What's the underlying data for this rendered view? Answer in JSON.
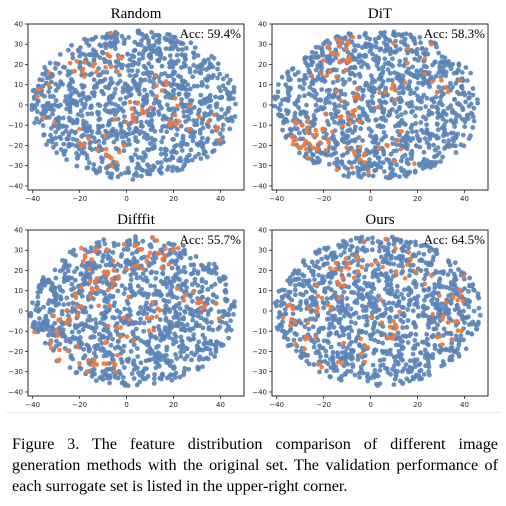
{
  "figure": {
    "caption": "Figure 3. The feature distribution comparison of different image generation methods with the original set. The validation performance of each surrogate set is listed in the upper-right corner."
  },
  "colors": {
    "original": "#5b84b8",
    "generated": "#f0783c"
  },
  "chart_data": [
    {
      "type": "scatter",
      "title": "Random",
      "annotation": "Acc: 59.4%",
      "xlim": [
        -42,
        50
      ],
      "ylim": [
        -42,
        40
      ],
      "xticks": [
        -40,
        -20,
        0,
        20,
        40
      ],
      "yticks": [
        -40,
        -30,
        -20,
        -10,
        0,
        10,
        20,
        30,
        40
      ],
      "series": [
        {
          "color": "#5b84b8",
          "count": 1100,
          "seed": 11
        },
        {
          "color": "#f0783c",
          "count": 75,
          "seed": 101,
          "clusters": [
            [
              -30,
              -5
            ],
            [
              -20,
              18
            ],
            [
              -8,
              25
            ],
            [
              5,
              -5
            ],
            [
              15,
              8
            ],
            [
              -25,
              -20
            ],
            [
              22,
              -12
            ],
            [
              -5,
              -25
            ],
            [
              35,
              -10
            ],
            [
              -35,
              10
            ]
          ]
        }
      ]
    },
    {
      "type": "scatter",
      "title": "DiT",
      "annotation": "Acc: 58.3%",
      "xlim": [
        -42,
        50
      ],
      "ylim": [
        -42,
        40
      ],
      "xticks": [
        -40,
        -20,
        0,
        20,
        40
      ],
      "yticks": [
        -40,
        -30,
        -20,
        -10,
        0,
        10,
        20,
        30,
        40
      ],
      "series": [
        {
          "color": "#5b84b8",
          "count": 1100,
          "seed": 23
        },
        {
          "color": "#f0783c",
          "count": 110,
          "seed": 202,
          "clusters": [
            [
              -15,
              22
            ],
            [
              -8,
              5
            ],
            [
              -25,
              -15
            ],
            [
              -10,
              -5
            ],
            [
              5,
              5
            ],
            [
              20,
              25
            ],
            [
              30,
              10
            ],
            [
              -30,
              -20
            ],
            [
              -12,
              30
            ],
            [
              8,
              -20
            ],
            [
              -5,
              -28
            ]
          ]
        }
      ]
    },
    {
      "type": "scatter",
      "title": "Difffit",
      "annotation": "Acc: 55.7%",
      "xlim": [
        -42,
        50
      ],
      "ylim": [
        -42,
        40
      ],
      "xticks": [
        -40,
        -20,
        0,
        20,
        40
      ],
      "yticks": [
        -40,
        -30,
        -20,
        -10,
        0,
        10,
        20,
        30,
        40
      ],
      "series": [
        {
          "color": "#5b84b8",
          "count": 1100,
          "seed": 37
        },
        {
          "color": "#f0783c",
          "count": 120,
          "seed": 303,
          "clusters": [
            [
              -15,
              8
            ],
            [
              -8,
              15
            ],
            [
              -30,
              -20
            ],
            [
              -25,
              -5
            ],
            [
              5,
              30
            ],
            [
              15,
              25
            ],
            [
              -5,
              -10
            ],
            [
              10,
              0
            ],
            [
              30,
              5
            ],
            [
              -20,
              30
            ],
            [
              -10,
              -25
            ]
          ]
        }
      ]
    },
    {
      "type": "scatter",
      "title": "Ours",
      "annotation": "Acc: 64.5%",
      "xlim": [
        -42,
        50
      ],
      "ylim": [
        -42,
        40
      ],
      "xticks": [
        -40,
        -20,
        0,
        20,
        40
      ],
      "yticks": [
        -40,
        -30,
        -20,
        -10,
        0,
        10,
        20,
        30,
        40
      ],
      "series": [
        {
          "color": "#5b84b8",
          "count": 1100,
          "seed": 41
        },
        {
          "color": "#f0783c",
          "count": 100,
          "seed": 404,
          "clusters": [
            [
              -20,
              5
            ],
            [
              -12,
              20
            ],
            [
              -25,
              -15
            ],
            [
              -5,
              -20
            ],
            [
              10,
              -5
            ],
            [
              18,
              20
            ],
            [
              30,
              -8
            ],
            [
              -35,
              0
            ],
            [
              0,
              28
            ],
            [
              38,
              8
            ],
            [
              -15,
              -30
            ]
          ]
        }
      ]
    }
  ]
}
